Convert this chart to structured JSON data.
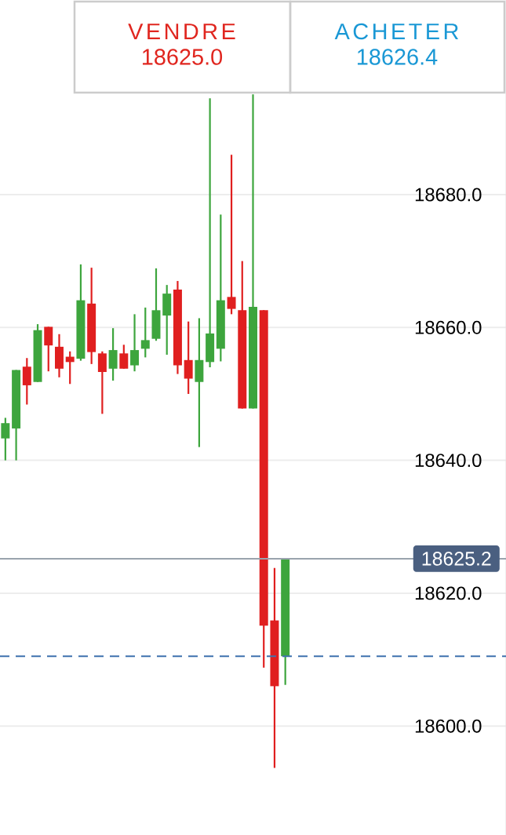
{
  "chart_data": {
    "type": "candlestick",
    "categories": [
      null,
      null,
      null,
      null,
      null,
      null,
      null,
      null,
      null,
      null,
      null,
      null,
      null,
      null,
      null,
      null,
      null,
      null,
      null,
      null,
      null,
      null,
      null,
      null,
      null,
      null,
      null,
      null,
      null,
      null,
      null,
      null,
      null,
      null,
      null,
      null,
      null,
      null,
      null,
      null,
      null,
      null,
      null,
      null,
      null,
      null,
      null
    ],
    "ohlc": [
      [
        18643.3,
        18646.4,
        18640.0,
        18645.6
      ],
      [
        18644.8,
        18653.6,
        18640.0,
        18653.6
      ],
      [
        18654.1,
        18655.4,
        18648.4,
        18651.3
      ],
      [
        18651.8,
        18660.5,
        18651.8,
        18659.6
      ],
      [
        18660.1,
        18660.1,
        18653.4,
        18657.3
      ],
      [
        18657.1,
        18659.0,
        18652.5,
        18653.8
      ],
      [
        18655.6,
        18656.4,
        18651.5,
        18654.8
      ],
      [
        18655.3,
        18669.5,
        18655.0,
        18664.1
      ],
      [
        18663.6,
        18669.0,
        18654.5,
        18656.3
      ],
      [
        18656.1,
        18656.4,
        18647.0,
        18653.3
      ],
      [
        18653.8,
        18659.9,
        18652.0,
        18656.6
      ],
      [
        18656.1,
        18657.4,
        18653.8,
        18653.8
      ],
      [
        18654.3,
        18662.0,
        18653.4,
        18656.6
      ],
      [
        18656.8,
        18663.0,
        18655.5,
        18658.1
      ],
      [
        18658.3,
        18668.9,
        18658.0,
        18662.6
      ],
      [
        18661.8,
        18666.4,
        18655.9,
        18665.1
      ],
      [
        18665.7,
        18667.0,
        18653.0,
        18654.3
      ],
      [
        18655.1,
        18660.9,
        18650.0,
        18652.3
      ],
      [
        18651.8,
        18661.4,
        18642.0,
        18655.1
      ],
      [
        18654.8,
        18694.5,
        18654.0,
        18659.1
      ],
      [
        18656.8,
        18677.0,
        18654.9,
        18664.1
      ],
      [
        18664.6,
        18686.0,
        18662.0,
        18662.8
      ],
      [
        18662.6,
        18670.0,
        18647.8,
        18647.8
      ],
      [
        18647.8,
        18695.1,
        18647.8,
        18663.1
      ],
      [
        18662.6,
        18662.6,
        18608.8,
        18615.1
      ],
      [
        18615.9,
        18623.8,
        18593.7,
        18606.0
      ],
      [
        18610.5,
        18625.2,
        18606.2,
        18625.2
      ],
      null,
      null,
      null,
      null,
      null,
      null,
      null,
      null,
      null,
      null,
      null,
      null,
      null,
      null,
      null,
      null,
      null,
      null,
      null,
      null
    ],
    "colors": [
      "#3da53d",
      "#3da53d",
      "#e01f1f",
      "#3da53d",
      "#e01f1f",
      "#e01f1f",
      "#e01f1f",
      "#3da53d",
      "#e01f1f",
      "#e01f1f",
      "#3da53d",
      "#e01f1f",
      "#3da53d",
      "#3da53d",
      "#3da53d",
      "#3da53d",
      "#e01f1f",
      "#e01f1f",
      "#3da53d",
      "#3da53d",
      "#3da53d",
      "#e01f1f",
      "#e01f1f",
      "#3da53d",
      "#e01f1f",
      "#e01f1f",
      "#3da53d",
      null,
      null,
      null,
      null,
      null,
      null,
      null,
      null,
      null,
      null,
      null,
      null,
      null,
      null,
      null,
      null,
      null,
      null,
      null,
      null
    ],
    "ylim": [
      18583.6,
      18709.3
    ],
    "yticks": [
      {
        "value": 18600,
        "label": "18600.0"
      },
      {
        "value": 18620,
        "label": "18620.0"
      },
      {
        "value": 18640,
        "label": "18640.0"
      },
      {
        "value": 18660,
        "label": "18660.0"
      },
      {
        "value": 18680,
        "label": "18680.0"
      }
    ],
    "tick_labels": "y",
    "grid": "y",
    "ref_lines": [
      {
        "axis": "y",
        "value": 18625.2,
        "label": "18625.2",
        "color": "#9aa3ad"
      },
      {
        "axis": "y",
        "value": 18610.5,
        "color": "#3f72af",
        "line_style": "dashed"
      }
    ],
    "annotations": [
      "VENDRE",
      "18625.0",
      "ACHETER",
      "18626.4"
    ]
  }
}
